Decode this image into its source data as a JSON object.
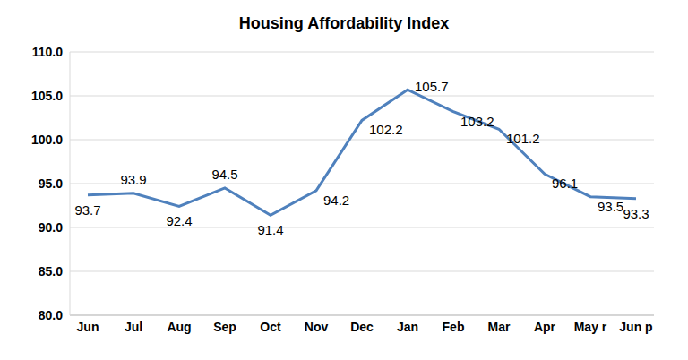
{
  "chart_data": {
    "type": "line",
    "title": "Housing Affordability Index",
    "categories": [
      "Jun",
      "Jul",
      "Aug",
      "Sep",
      "Oct",
      "Nov",
      "Dec",
      "Jan",
      "Feb",
      "Mar",
      "Apr",
      "May r",
      "Jun p"
    ],
    "values": [
      93.7,
      93.9,
      92.4,
      94.5,
      91.4,
      94.2,
      102.2,
      105.7,
      103.2,
      101.2,
      96.1,
      93.5,
      93.3
    ],
    "color": "#4f81bd",
    "ylim": [
      80,
      110
    ],
    "yticks": [
      {
        "value": 80,
        "label": "80.0"
      },
      {
        "value": 85,
        "label": "85.0"
      },
      {
        "value": 90,
        "label": "90.0"
      },
      {
        "value": 95,
        "label": "95.0"
      },
      {
        "value": 100,
        "label": "100.0"
      },
      {
        "value": 105,
        "label": "105.0"
      },
      {
        "value": 110,
        "label": "110.0"
      }
    ],
    "grid": true,
    "data_labels": true
  }
}
